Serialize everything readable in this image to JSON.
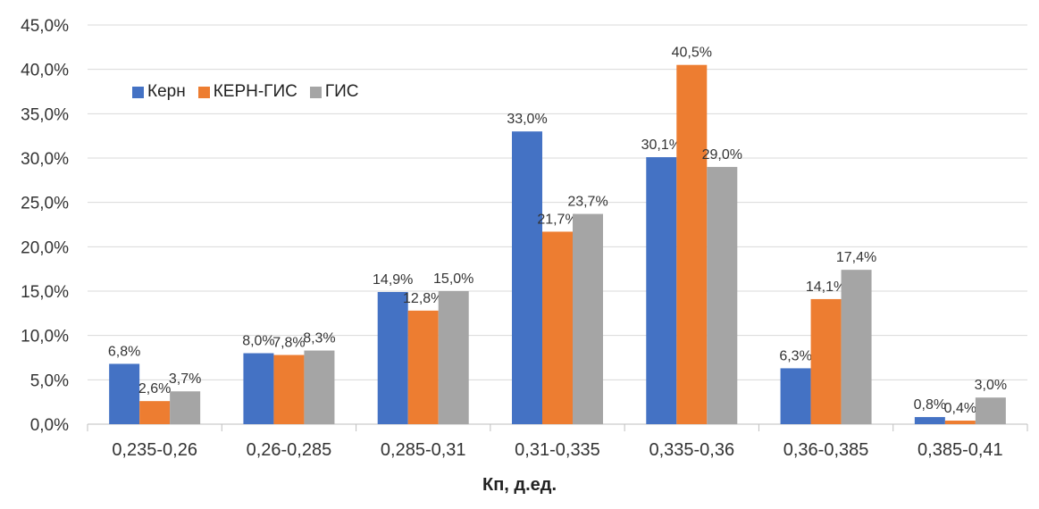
{
  "chart_data": {
    "type": "bar",
    "title": "",
    "xlabel": "Кп, д.ед.",
    "ylabel": "",
    "ylim": [
      0,
      45
    ],
    "y_tick_labels": [
      "0,0%",
      "5,0%",
      "10,0%",
      "15,0%",
      "20,0%",
      "25,0%",
      "30,0%",
      "35,0%",
      "40,0%",
      "45,0%"
    ],
    "categories": [
      "0,235-0,26",
      "0,26-0,285",
      "0,285-0,31",
      "0,31-0,335",
      "0,335-0,36",
      "0,36-0,385",
      "0,385-0,41"
    ],
    "series": [
      {
        "name": "Керн",
        "color": "#4472C4",
        "values": [
          6.8,
          8.0,
          14.9,
          33.0,
          30.1,
          6.3,
          0.8
        ],
        "labels": [
          "6,8%",
          "8,0%",
          "14,9%",
          "33,0%",
          "30,1%",
          "6,3%",
          "0,8%"
        ]
      },
      {
        "name": "КЕРН-ГИС",
        "color": "#ED7D31",
        "values": [
          2.6,
          7.8,
          12.8,
          21.7,
          40.5,
          14.1,
          0.4
        ],
        "labels": [
          "2,6%",
          "7,8%",
          "12,8%",
          "21,7%",
          "40,5%",
          "14,1%",
          "0,4%"
        ]
      },
      {
        "name": "ГИС",
        "color": "#A5A5A5",
        "values": [
          3.7,
          8.3,
          15.0,
          23.7,
          29.0,
          17.4,
          3.0
        ],
        "labels": [
          "3,7%",
          "8,3%",
          "15,0%",
          "23,7%",
          "29,0%",
          "17,4%",
          "3,0%"
        ]
      }
    ],
    "grid": true,
    "legend_position": "top-left"
  }
}
